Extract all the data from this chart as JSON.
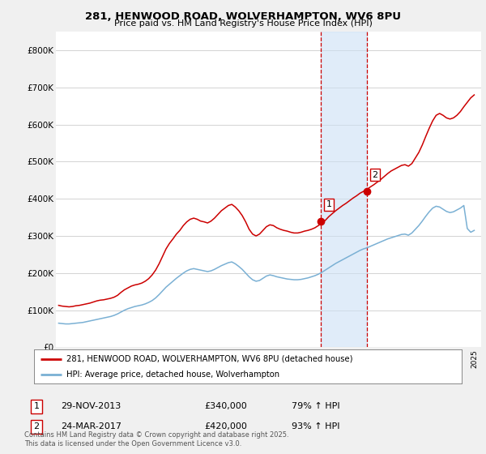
{
  "title1": "281, HENWOOD ROAD, WOLVERHAMPTON, WV6 8PU",
  "title2": "Price paid vs. HM Land Registry's House Price Index (HPI)",
  "ylabel_ticks": [
    0,
    100000,
    200000,
    300000,
    400000,
    500000,
    600000,
    700000,
    800000
  ],
  "ylim": [
    0,
    850000
  ],
  "xlim_start": 1994.8,
  "xlim_end": 2025.5,
  "sale1_year": 2013.91,
  "sale1_price": 340000,
  "sale1_label": "1",
  "sale1_date": "29-NOV-2013",
  "sale1_hpi": "79% ↑ HPI",
  "sale2_year": 2017.23,
  "sale2_price": 420000,
  "sale2_label": "2",
  "sale2_date": "24-MAR-2017",
  "sale2_hpi": "93% ↑ HPI",
  "highlight_color": "#cce0f5",
  "highlight_alpha": 0.6,
  "line1_color": "#cc0000",
  "line2_color": "#7ab0d4",
  "sale_marker_color": "#cc0000",
  "vline_color": "#cc0000",
  "vline_style": "--",
  "background_color": "#f0f0f0",
  "plot_bg_color": "#ffffff",
  "legend1_label": "281, HENWOOD ROAD, WOLVERHAMPTON, WV6 8PU (detached house)",
  "legend2_label": "HPI: Average price, detached house, Wolverhampton",
  "footer": "Contains HM Land Registry data © Crown copyright and database right 2025.\nThis data is licensed under the Open Government Licence v3.0.",
  "red_hpi_data": {
    "years": [
      1995.0,
      1995.25,
      1995.5,
      1995.75,
      1996.0,
      1996.25,
      1996.5,
      1996.75,
      1997.0,
      1997.25,
      1997.5,
      1997.75,
      1998.0,
      1998.25,
      1998.5,
      1998.75,
      1999.0,
      1999.25,
      1999.5,
      1999.75,
      2000.0,
      2000.25,
      2000.5,
      2000.75,
      2001.0,
      2001.25,
      2001.5,
      2001.75,
      2002.0,
      2002.25,
      2002.5,
      2002.75,
      2003.0,
      2003.25,
      2003.5,
      2003.75,
      2004.0,
      2004.25,
      2004.5,
      2004.75,
      2005.0,
      2005.25,
      2005.5,
      2005.75,
      2006.0,
      2006.25,
      2006.5,
      2006.75,
      2007.0,
      2007.25,
      2007.5,
      2007.75,
      2008.0,
      2008.25,
      2008.5,
      2008.75,
      2009.0,
      2009.25,
      2009.5,
      2009.75,
      2010.0,
      2010.25,
      2010.5,
      2010.75,
      2011.0,
      2011.25,
      2011.5,
      2011.75,
      2012.0,
      2012.25,
      2012.5,
      2012.75,
      2013.0,
      2013.25,
      2013.5,
      2013.75,
      2014.0,
      2014.25,
      2014.5,
      2014.75,
      2015.0,
      2015.25,
      2015.5,
      2015.75,
      2016.0,
      2016.25,
      2016.5,
      2016.75,
      2017.0,
      2017.25,
      2017.5,
      2017.75,
      2018.0,
      2018.25,
      2018.5,
      2018.75,
      2019.0,
      2019.25,
      2019.5,
      2019.75,
      2020.0,
      2020.25,
      2020.5,
      2020.75,
      2021.0,
      2021.25,
      2021.5,
      2021.75,
      2022.0,
      2022.25,
      2022.5,
      2022.75,
      2023.0,
      2023.25,
      2023.5,
      2023.75,
      2024.0,
      2024.25,
      2024.5,
      2024.75,
      2025.0
    ],
    "values": [
      113000,
      111000,
      110000,
      109000,
      110000,
      112000,
      113000,
      115000,
      117000,
      119000,
      122000,
      125000,
      127000,
      128000,
      130000,
      132000,
      135000,
      140000,
      148000,
      155000,
      160000,
      165000,
      168000,
      170000,
      173000,
      178000,
      185000,
      195000,
      208000,
      225000,
      245000,
      265000,
      280000,
      292000,
      305000,
      315000,
      328000,
      338000,
      345000,
      348000,
      345000,
      340000,
      338000,
      335000,
      340000,
      348000,
      358000,
      368000,
      375000,
      382000,
      385000,
      378000,
      368000,
      355000,
      338000,
      318000,
      305000,
      300000,
      305000,
      315000,
      325000,
      330000,
      328000,
      322000,
      318000,
      315000,
      313000,
      310000,
      308000,
      308000,
      310000,
      313000,
      315000,
      318000,
      322000,
      328000,
      335000,
      342000,
      352000,
      360000,
      368000,
      375000,
      382000,
      388000,
      395000,
      402000,
      408000,
      415000,
      420000,
      425000,
      432000,
      438000,
      445000,
      452000,
      460000,
      468000,
      475000,
      480000,
      485000,
      490000,
      492000,
      488000,
      495000,
      510000,
      525000,
      545000,
      568000,
      590000,
      610000,
      625000,
      630000,
      625000,
      618000,
      615000,
      618000,
      625000,
      635000,
      648000,
      660000,
      672000,
      680000
    ]
  },
  "blue_hpi_data": {
    "years": [
      1995.0,
      1995.25,
      1995.5,
      1995.75,
      1996.0,
      1996.25,
      1996.5,
      1996.75,
      1997.0,
      1997.25,
      1997.5,
      1997.75,
      1998.0,
      1998.25,
      1998.5,
      1998.75,
      1999.0,
      1999.25,
      1999.5,
      1999.75,
      2000.0,
      2000.25,
      2000.5,
      2000.75,
      2001.0,
      2001.25,
      2001.5,
      2001.75,
      2002.0,
      2002.25,
      2002.5,
      2002.75,
      2003.0,
      2003.25,
      2003.5,
      2003.75,
      2004.0,
      2004.25,
      2004.5,
      2004.75,
      2005.0,
      2005.25,
      2005.5,
      2005.75,
      2006.0,
      2006.25,
      2006.5,
      2006.75,
      2007.0,
      2007.25,
      2007.5,
      2007.75,
      2008.0,
      2008.25,
      2008.5,
      2008.75,
      2009.0,
      2009.25,
      2009.5,
      2009.75,
      2010.0,
      2010.25,
      2010.5,
      2010.75,
      2011.0,
      2011.25,
      2011.5,
      2011.75,
      2012.0,
      2012.25,
      2012.5,
      2012.75,
      2013.0,
      2013.25,
      2013.5,
      2013.75,
      2014.0,
      2014.25,
      2014.5,
      2014.75,
      2015.0,
      2015.25,
      2015.5,
      2015.75,
      2016.0,
      2016.25,
      2016.5,
      2016.75,
      2017.0,
      2017.25,
      2017.5,
      2017.75,
      2018.0,
      2018.25,
      2018.5,
      2018.75,
      2019.0,
      2019.25,
      2019.5,
      2019.75,
      2020.0,
      2020.25,
      2020.5,
      2020.75,
      2021.0,
      2021.25,
      2021.5,
      2021.75,
      2022.0,
      2022.25,
      2022.5,
      2022.75,
      2023.0,
      2023.25,
      2023.5,
      2023.75,
      2024.0,
      2024.25,
      2024.5,
      2024.75,
      2025.0
    ],
    "values": [
      65000,
      64000,
      63000,
      63000,
      64000,
      65000,
      66000,
      67000,
      69000,
      71000,
      73000,
      75000,
      77000,
      79000,
      81000,
      83000,
      86000,
      90000,
      95000,
      100000,
      104000,
      107000,
      110000,
      112000,
      114000,
      117000,
      121000,
      126000,
      133000,
      142000,
      152000,
      162000,
      170000,
      178000,
      186000,
      193000,
      200000,
      206000,
      210000,
      212000,
      210000,
      208000,
      206000,
      204000,
      206000,
      210000,
      215000,
      220000,
      224000,
      228000,
      230000,
      225000,
      218000,
      210000,
      200000,
      190000,
      182000,
      178000,
      180000,
      186000,
      192000,
      195000,
      193000,
      190000,
      188000,
      186000,
      184000,
      183000,
      182000,
      182000,
      183000,
      185000,
      187000,
      190000,
      193000,
      197000,
      202000,
      208000,
      214000,
      220000,
      226000,
      231000,
      236000,
      241000,
      246000,
      251000,
      256000,
      261000,
      265000,
      268000,
      272000,
      276000,
      280000,
      284000,
      288000,
      292000,
      295000,
      298000,
      301000,
      304000,
      305000,
      302000,
      308000,
      318000,
      328000,
      340000,
      353000,
      365000,
      375000,
      380000,
      378000,
      372000,
      366000,
      363000,
      365000,
      370000,
      375000,
      382000,
      320000,
      310000,
      315000
    ]
  }
}
